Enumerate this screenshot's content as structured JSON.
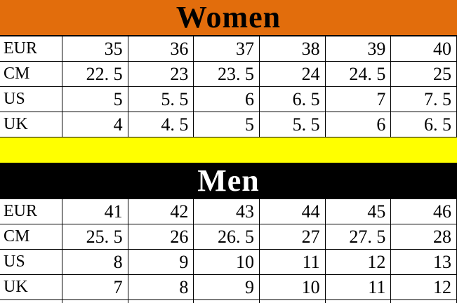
{
  "women": {
    "title": "Women",
    "banner_bg": "#E26D0C",
    "title_color": "#000000",
    "table": {
      "rows": [
        {
          "label": "EUR",
          "values": [
            "35",
            "36",
            "37",
            "38",
            "39",
            "40"
          ]
        },
        {
          "label": "CM",
          "values": [
            "22. 5",
            "23",
            "23. 5",
            "24",
            "24. 5",
            "25"
          ]
        },
        {
          "label": "US",
          "values": [
            "5",
            "5. 5",
            "6",
            "6. 5",
            "7",
            "7. 5"
          ]
        },
        {
          "label": "UK",
          "values": [
            "4",
            "4. 5",
            "5",
            "5. 5",
            "6",
            "6. 5"
          ]
        }
      ]
    }
  },
  "divider": {
    "color": "#FFFF00"
  },
  "men": {
    "title": "Men",
    "banner_bg": "#000000",
    "title_color": "#FFFFFF",
    "table": {
      "rows": [
        {
          "label": "EUR",
          "values": [
            "41",
            "42",
            "43",
            "44",
            "45",
            "46"
          ]
        },
        {
          "label": "CM",
          "values": [
            "25. 5",
            "26",
            "26. 5",
            "27",
            "27. 5",
            "28"
          ]
        },
        {
          "label": "US",
          "values": [
            "8",
            "9",
            "10",
            "11",
            "12",
            "13"
          ]
        },
        {
          "label": "UK",
          "values": [
            "7",
            "8",
            "9",
            "10",
            "11",
            "12"
          ]
        }
      ]
    }
  },
  "chart_data": [
    {
      "type": "table",
      "title": "Women",
      "row_headers": [
        "EUR",
        "CM",
        "US",
        "UK"
      ],
      "rows": [
        [
          35,
          36,
          37,
          38,
          39,
          40
        ],
        [
          22.5,
          23,
          23.5,
          24,
          24.5,
          25
        ],
        [
          5,
          5.5,
          6,
          6.5,
          7,
          7.5
        ],
        [
          4,
          4.5,
          5,
          5.5,
          6,
          6.5
        ]
      ]
    },
    {
      "type": "table",
      "title": "Men",
      "row_headers": [
        "EUR",
        "CM",
        "US",
        "UK"
      ],
      "rows": [
        [
          41,
          42,
          43,
          44,
          45,
          46
        ],
        [
          25.5,
          26,
          26.5,
          27,
          27.5,
          28
        ],
        [
          8,
          9,
          10,
          11,
          12,
          13
        ],
        [
          7,
          8,
          9,
          10,
          11,
          12
        ]
      ]
    }
  ]
}
